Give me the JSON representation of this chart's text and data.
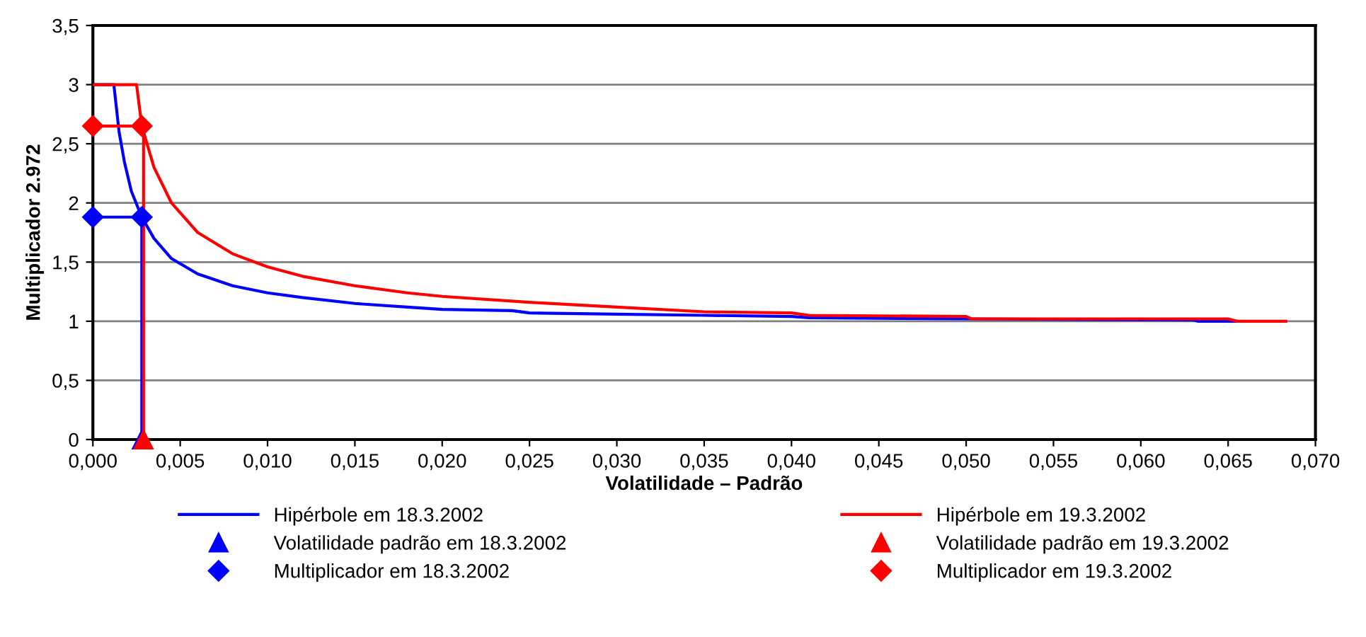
{
  "chart_data": {
    "type": "line",
    "xlabel": "Volatilidade – Padrão",
    "ylabel": "Multiplicador 2.972",
    "xlim": [
      0,
      0.07
    ],
    "ylim": [
      0,
      3.5
    ],
    "xticks": [
      {
        "value": 0,
        "label": "0,000"
      },
      {
        "value": 0.005,
        "label": "0,005"
      },
      {
        "value": 0.01,
        "label": "0,010"
      },
      {
        "value": 0.015,
        "label": "0,015"
      },
      {
        "value": 0.02,
        "label": "0,020"
      },
      {
        "value": 0.025,
        "label": "0,025"
      },
      {
        "value": 0.03,
        "label": "0,030"
      },
      {
        "value": 0.035,
        "label": "0,035"
      },
      {
        "value": 0.04,
        "label": "0,040"
      },
      {
        "value": 0.045,
        "label": "0,045"
      },
      {
        "value": 0.05,
        "label": "0,050"
      },
      {
        "value": 0.055,
        "label": "0,055"
      },
      {
        "value": 0.06,
        "label": "0,060"
      },
      {
        "value": 0.065,
        "label": "0,065"
      },
      {
        "value": 0.07,
        "label": "0,070"
      }
    ],
    "yticks": [
      0,
      {
        "value": 0.5,
        "label": "0,5"
      },
      1,
      {
        "value": 1.5,
        "label": "1,5"
      },
      2,
      {
        "value": 2.5,
        "label": "2,5"
      },
      3,
      {
        "value": 3.5,
        "label": "3,5"
      }
    ],
    "grid": "y",
    "legend": "bottom",
    "series": [
      {
        "name": "Hipérbole em 18.3.2002",
        "color": "#0000ff",
        "marker": "none",
        "x": [
          0,
          0.0012,
          0.0015,
          0.0018,
          0.0022,
          0.0028,
          0.0035,
          0.0045,
          0.006,
          0.008,
          0.01,
          0.012,
          0.015,
          0.018,
          0.02,
          0.024,
          0.025,
          0.03,
          0.035,
          0.04,
          0.041,
          0.05,
          0.063,
          0.0633,
          0.0655
        ],
        "values": [
          3,
          3,
          2.6,
          2.35,
          2.1,
          1.88,
          1.7,
          1.53,
          1.4,
          1.3,
          1.24,
          1.2,
          1.15,
          1.12,
          1.1,
          1.09,
          1.07,
          1.06,
          1.05,
          1.04,
          1.03,
          1.02,
          1.01,
          1.0,
          1.0
        ]
      },
      {
        "name": "Hipérbole em 19.3.2002",
        "color": "#ff0000",
        "marker": "none",
        "x": [
          0,
          0.0025,
          0.0028,
          0.0035,
          0.0045,
          0.006,
          0.008,
          0.01,
          0.012,
          0.015,
          0.018,
          0.02,
          0.025,
          0.03,
          0.035,
          0.04,
          0.041,
          0.05,
          0.0503,
          0.065,
          0.0655,
          0.0683
        ],
        "values": [
          3,
          3,
          2.65,
          2.3,
          2.0,
          1.75,
          1.57,
          1.46,
          1.38,
          1.3,
          1.24,
          1.21,
          1.16,
          1.12,
          1.08,
          1.07,
          1.05,
          1.04,
          1.02,
          1.02,
          1.0,
          1.0
        ]
      },
      {
        "name": "Volatilidade padrão em 18.3.2002",
        "color": "#0000ff",
        "marker": "triangle",
        "x": [
          0.0028,
          0.0028
        ],
        "values": [
          1.88,
          0
        ]
      },
      {
        "name": "Volatilidade padrão em 19.3.2002",
        "color": "#ff0000",
        "marker": "triangle",
        "x": [
          0.0029,
          0.0029
        ],
        "values": [
          2.65,
          0
        ]
      },
      {
        "name": "Multiplicador em 18.3.2002",
        "color": "#0000ff",
        "marker": "diamond",
        "x": [
          0,
          0.0028
        ],
        "values": [
          1.88,
          1.88
        ]
      },
      {
        "name": "Multiplicador em 19.3.2002",
        "color": "#ff0000",
        "marker": "diamond",
        "x": [
          0,
          0.0028
        ],
        "values": [
          2.65,
          2.65
        ]
      }
    ]
  }
}
